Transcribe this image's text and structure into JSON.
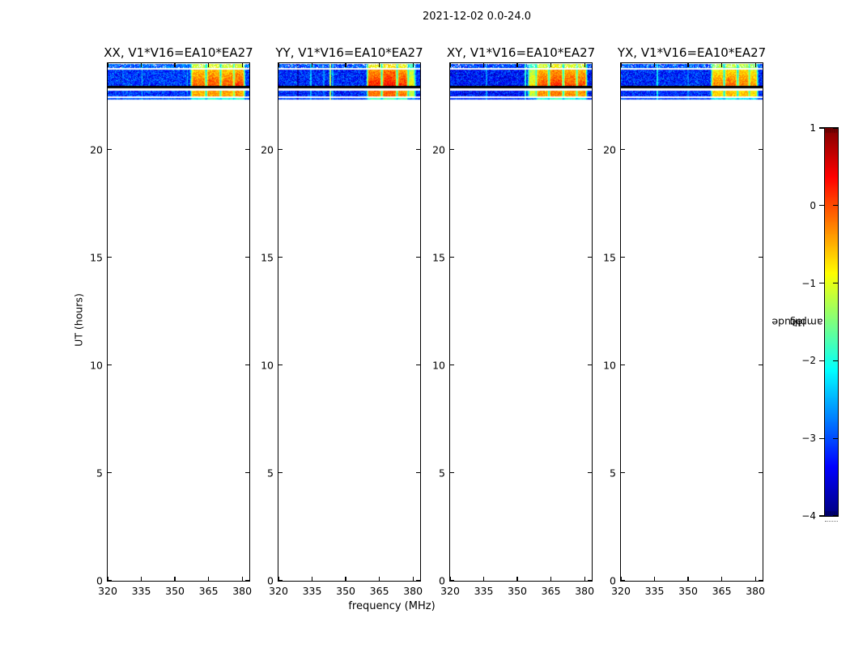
{
  "figure": {
    "background": "#ffffff",
    "frame_color": "#000000"
  },
  "chart_data": {
    "type": "heatmap",
    "title": "2021-12-02 0.0-24.0",
    "xlabel": "frequency (MHz)",
    "ylabel": "UT (hours)",
    "xlim": [
      320,
      383.2
    ],
    "ylim": [
      0,
      24
    ],
    "xticks": [
      320,
      335,
      350,
      365,
      380
    ],
    "yticks": [
      0,
      5,
      10,
      15,
      20
    ],
    "grid": false,
    "colormap": "jet",
    "colorbar": {
      "label_log": "log",
      "label_sub": "10",
      "label_rest": " amplitude",
      "ticks": [
        1,
        0,
        -1,
        -2,
        -3,
        -4
      ],
      "vmin": -4,
      "vmax": 1,
      "position": "right"
    },
    "time_coverage_ut": [
      22.31,
      23.95
    ],
    "bands": [
      {
        "ut0": 23.78,
        "ut1": 23.95,
        "kind": "data",
        "role": "strip"
      },
      {
        "ut0": 23.71,
        "ut1": 23.78,
        "kind": "white"
      },
      {
        "ut0": 22.96,
        "ut1": 23.71,
        "kind": "data",
        "role": "main"
      },
      {
        "ut0": 22.85,
        "ut1": 22.96,
        "kind": "black"
      },
      {
        "ut0": 22.73,
        "ut1": 22.85,
        "kind": "white"
      },
      {
        "ut0": 22.45,
        "ut1": 22.73,
        "kind": "data",
        "role": "secondary"
      },
      {
        "ut0": 22.4,
        "ut1": 22.45,
        "kind": "white"
      },
      {
        "ut0": 22.31,
        "ut1": 22.4,
        "kind": "data",
        "role": "edge"
      }
    ],
    "panels": [
      {
        "pol": "XX",
        "title": "XX, V1*V16=EA10*EA27",
        "base": -3.1,
        "seed": 7,
        "lines": [
          {
            "f": 327.0,
            "v": -2.9
          },
          {
            "f": 335.3,
            "v": -2.2
          },
          {
            "f": 355.6,
            "v": -2.5
          }
        ],
        "darklines": [
          326.0
        ],
        "blobs": [
          {
            "f0": 357.6,
            "f1": 363.4,
            "v": -0.45
          },
          {
            "f0": 364.5,
            "f1": 369.9,
            "v": -0.35
          },
          {
            "f0": 370.9,
            "f1": 376.0,
            "v": -0.4
          },
          {
            "f0": 376.7,
            "f1": 380.7,
            "v": -0.3
          }
        ]
      },
      {
        "pol": "YY",
        "title": "YY, V1*V16=EA10*EA27",
        "base": -3.2,
        "seed": 13,
        "lines": [
          {
            "f": 334.5,
            "v": -2.4
          },
          {
            "f": 340.2,
            "v": -2.7
          },
          {
            "f": 343.1,
            "v": -1.3
          },
          {
            "f": 344.1,
            "v": -2.5
          }
        ],
        "darklines": [
          328.7
        ],
        "blobs": [
          {
            "f0": 360.0,
            "f1": 365.6,
            "v": -0.15
          },
          {
            "f0": 366.6,
            "f1": 372.4,
            "v": -0.05
          },
          {
            "f0": 373.4,
            "f1": 377.4,
            "v": -0.2
          },
          {
            "f0": 378.2,
            "f1": 380.6,
            "v": -1.1
          }
        ]
      },
      {
        "pol": "XY",
        "title": "XY, V1*V16=EA10*EA27",
        "base": -3.3,
        "seed": 21,
        "lines": [
          {
            "f": 336.3,
            "v": -2.6
          },
          {
            "f": 353.6,
            "v": -2.0
          }
        ],
        "darklines": [],
        "blobs": [
          {
            "f0": 355.2,
            "f1": 358.2,
            "v": -1.1
          },
          {
            "f0": 358.8,
            "f1": 363.6,
            "v": -0.35
          },
          {
            "f0": 364.6,
            "f1": 370.0,
            "v": -0.2
          },
          {
            "f0": 371.0,
            "f1": 376.2,
            "v": -0.3
          },
          {
            "f0": 377.0,
            "f1": 380.6,
            "v": -0.35
          }
        ]
      },
      {
        "pol": "YX",
        "title": "YX, V1*V16=EA10*EA27",
        "base": -3.2,
        "seed": 29,
        "lines": [
          {
            "f": 336.3,
            "v": -2.2
          },
          {
            "f": 350.0,
            "v": -2.8
          }
        ],
        "darklines": [],
        "blobs": [
          {
            "f0": 360.8,
            "f1": 365.6,
            "v": -0.6
          },
          {
            "f0": 366.6,
            "f1": 371.6,
            "v": -0.5
          },
          {
            "f0": 372.6,
            "f1": 377.0,
            "v": -0.55
          },
          {
            "f0": 377.6,
            "f1": 380.6,
            "v": -0.7
          }
        ]
      }
    ]
  }
}
